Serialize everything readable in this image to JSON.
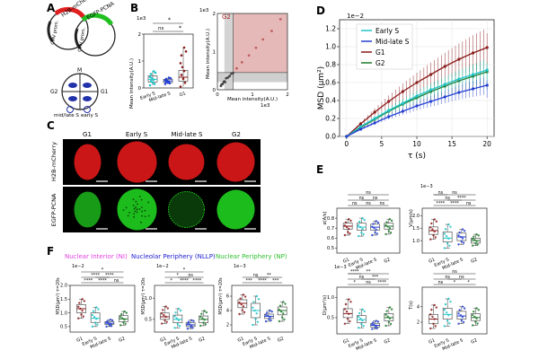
{
  "panels": {
    "A": {
      "letter": "A",
      "construct": [
        "H2B-mCherry",
        "EGFP-PCNA",
        "CMV prom.",
        "CMV prom."
      ],
      "cycle": {
        "M": "M",
        "G2": "G2",
        "G1": "G1",
        "mid_late_s": "mid/late S",
        "early_s": "early S"
      }
    },
    "B": {
      "letter": "B",
      "scale_left": "1e3",
      "scale_right": "1e3",
      "scale_right_x": "1e3",
      "sig": [
        "*",
        "ns",
        "*"
      ],
      "ylabel_left": "Mean intensity(A.U.)",
      "ylabel_right": "Mean intensity(A.U.)",
      "xlabel_right": "Mean intensity(A.U.)",
      "g2_label": "G2",
      "left_yticks": [
        "0",
        "1",
        "2"
      ],
      "left_xticks": [
        "Early S",
        "Mid-late S",
        "G1"
      ],
      "right_ticks": [
        "0",
        "1",
        "2"
      ]
    },
    "C": {
      "letter": "C",
      "columns": [
        "G1",
        "Early S",
        "Mid-late S",
        "G2"
      ],
      "rows": [
        "H2B-mCherry",
        "EGFP-PCNA"
      ]
    },
    "D": {
      "letter": "D",
      "scale": "1e−2",
      "ylabel": "MSD (μm²)",
      "xlabel": "τ (s)",
      "yticks": [
        "0.0",
        "0.2",
        "0.4",
        "0.6",
        "0.8",
        "1.0",
        "1.2"
      ],
      "xticks": [
        "0",
        "5",
        "10",
        "15",
        "20"
      ],
      "legend": [
        "Early S",
        "Mid-late S",
        "G1",
        "G2"
      ]
    },
    "E": {
      "letter": "E",
      "p1": {
        "ylabel": "α(A/s)",
        "yticks": [
          "0.5",
          "0.6",
          "0.7",
          "0.8"
        ],
        "sig": [
          "ns",
          "ns",
          "ns",
          "ns",
          "ns",
          "ns"
        ]
      },
      "p2": {
        "scale": "1e−3",
        "ylabel": "V(μm/s)",
        "yticks": [
          "1.0",
          "1.5",
          "2.0"
        ],
        "sig": [
          "****",
          "****",
          "ns",
          "ns",
          "****",
          "ns",
          "ns"
        ]
      },
      "p3": {
        "scale": "1e−3",
        "ylabel": "D(μm²/s)",
        "yticks": [
          "0.5",
          "1.0"
        ],
        "sig": [
          "*",
          "ns",
          "****",
          "ns",
          "***",
          "**",
          "****"
        ]
      },
      "p4": {
        "ylabel": "T(s)",
        "yticks": [
          "2",
          "4"
        ],
        "sig": [
          "ns",
          "*",
          "*",
          "ns",
          "ns",
          "ns"
        ]
      },
      "xticks": [
        "G1",
        "Early S",
        "Mid-late S",
        "G2"
      ]
    },
    "F": {
      "letter": "F",
      "titles": [
        "Nuclear Interior (NI)",
        "Nucleolar Periphery (NLLP)",
        "Nuclear Periphery (NP)"
      ],
      "p1": {
        "scale": "1e−2",
        "ylabel": "MSD(μm²) τ=20s",
        "yticks": [
          "0.5",
          "1.0",
          "1.5",
          "2.0"
        ],
        "sig": [
          "****",
          "****",
          "ns",
          "****",
          "****",
          "*"
        ]
      },
      "p2": {
        "scale": "1e−2",
        "ylabel": "MSD(μm²) τ=20s",
        "yticks": [
          "0.5",
          "1.0"
        ],
        "sig": [
          "*",
          "****",
          "****",
          "*",
          "ns",
          "*"
        ]
      },
      "p3": {
        "scale": "1e−3",
        "ylabel": "MSD(μm²) τ=20s",
        "yticks": [
          "2",
          "4",
          "6"
        ],
        "sig": [
          "***",
          "****",
          "***",
          "ns",
          "**"
        ]
      },
      "xticks": [
        "G1",
        "Early S",
        "Mid-late S",
        "G2"
      ]
    }
  },
  "chart_data": [
    {
      "type": "line",
      "id": "D",
      "title": "",
      "xlabel": "τ (s)",
      "ylabel": "MSD (μm²)",
      "x": [
        0,
        2,
        4,
        6,
        8,
        10,
        12,
        14,
        16,
        18,
        20
      ],
      "xlim": [
        -1,
        21
      ],
      "ylim": [
        0,
        1.3
      ],
      "series": [
        {
          "name": "Early S",
          "values": [
            0,
            0.11,
            0.2,
            0.29,
            0.37,
            0.45,
            0.52,
            0.58,
            0.64,
            0.69,
            0.74
          ],
          "err": 0.12
        },
        {
          "name": "Mid-late S",
          "values": [
            0,
            0.08,
            0.15,
            0.22,
            0.28,
            0.34,
            0.39,
            0.44,
            0.49,
            0.53,
            0.57
          ],
          "err": 0.1
        },
        {
          "name": "G1",
          "values": [
            0,
            0.14,
            0.27,
            0.39,
            0.5,
            0.6,
            0.69,
            0.78,
            0.86,
            0.93,
            0.99
          ],
          "err": 0.22
        },
        {
          "name": "G2",
          "values": [
            0,
            0.1,
            0.19,
            0.28,
            0.36,
            0.43,
            0.5,
            0.56,
            0.62,
            0.67,
            0.72
          ],
          "err": 0.15
        }
      ]
    },
    {
      "type": "scatter",
      "id": "B-right",
      "xlabel": "Mean intensity(A.U.)",
      "ylabel": "Mean intensity(A.U.)",
      "xlim": [
        0,
        2
      ],
      "ylim": [
        0,
        2
      ],
      "points": [
        [
          0.1,
          0.1
        ],
        [
          0.12,
          0.14
        ],
        [
          0.15,
          0.15
        ],
        [
          0.18,
          0.2
        ],
        [
          0.2,
          0.22
        ],
        [
          0.22,
          0.2
        ],
        [
          0.25,
          0.3
        ],
        [
          0.3,
          0.32
        ],
        [
          0.35,
          0.36
        ],
        [
          0.4,
          0.42
        ],
        [
          0.45,
          0.44
        ],
        [
          0.55,
          0.56
        ],
        [
          0.7,
          0.72
        ],
        [
          0.9,
          0.9
        ],
        [
          1.1,
          1.1
        ],
        [
          1.3,
          1.32
        ],
        [
          1.55,
          1.54
        ],
        [
          1.8,
          1.85
        ]
      ]
    },
    {
      "type": "box",
      "id": "B-left",
      "ylabel": "Mean intensity(A.U.)",
      "categories": [
        "Early S",
        "Mid-late S",
        "G1"
      ],
      "series": [
        {
          "name": "Early S",
          "q": [
            0.1,
            0.22,
            0.32,
            0.45,
            0.62
          ]
        },
        {
          "name": "Mid-late S",
          "q": [
            0.15,
            0.2,
            0.26,
            0.32,
            0.38
          ]
        },
        {
          "name": "G1",
          "q": [
            0.05,
            0.25,
            0.4,
            0.65,
            1.5
          ]
        }
      ]
    },
    {
      "type": "box",
      "id": "E-alpha",
      "categories": [
        "G1",
        "Early S",
        "Mid-late S",
        "G2"
      ],
      "ylim": [
        0.45,
        0.9
      ],
      "series": [
        {
          "q": [
            0.63,
            0.69,
            0.72,
            0.75,
            0.79
          ]
        },
        {
          "q": [
            0.62,
            0.68,
            0.71,
            0.75,
            0.8
          ]
        },
        {
          "q": [
            0.63,
            0.68,
            0.71,
            0.74,
            0.77
          ]
        },
        {
          "q": [
            0.64,
            0.69,
            0.72,
            0.75,
            0.79
          ]
        }
      ]
    },
    {
      "type": "box",
      "id": "E-V",
      "categories": [
        "G1",
        "Early S",
        "Mid-late S",
        "G2"
      ],
      "ylim": [
        0.5,
        2.3
      ],
      "series": [
        {
          "q": [
            1.05,
            1.25,
            1.4,
            1.55,
            1.85
          ]
        },
        {
          "q": [
            0.7,
            0.95,
            1.1,
            1.35,
            1.65
          ]
        },
        {
          "q": [
            0.85,
            1.0,
            1.15,
            1.3,
            1.45
          ]
        },
        {
          "q": [
            0.8,
            0.9,
            1.0,
            1.1,
            1.25
          ]
        }
      ]
    },
    {
      "type": "box",
      "id": "E-D",
      "categories": [
        "G1",
        "Early S",
        "Mid-late S",
        "G2"
      ],
      "ylim": [
        0.1,
        1.25
      ],
      "series": [
        {
          "q": [
            0.35,
            0.5,
            0.6,
            0.72,
            0.95
          ]
        },
        {
          "q": [
            0.25,
            0.38,
            0.45,
            0.55,
            0.7
          ]
        },
        {
          "q": [
            0.22,
            0.27,
            0.31,
            0.36,
            0.42
          ]
        },
        {
          "q": [
            0.3,
            0.42,
            0.5,
            0.6,
            0.75
          ]
        }
      ]
    },
    {
      "type": "box",
      "id": "E-T",
      "categories": [
        "G1",
        "Early S",
        "Mid-late S",
        "G2"
      ],
      "ylim": [
        0.5,
        6.5
      ],
      "series": [
        {
          "q": [
            1.2,
            1.8,
            2.4,
            3.0,
            4.2
          ]
        },
        {
          "q": [
            1.5,
            2.4,
            3.0,
            3.8,
            5.0
          ]
        },
        {
          "q": [
            1.8,
            2.4,
            2.8,
            3.4,
            4.0
          ]
        },
        {
          "q": [
            1.6,
            2.2,
            2.6,
            3.1,
            3.8
          ]
        }
      ]
    },
    {
      "type": "box",
      "id": "F-NI",
      "categories": [
        "G1",
        "Early S",
        "Mid-late S",
        "G2"
      ],
      "ylim": [
        0.3,
        2.0
      ],
      "series": [
        {
          "q": [
            0.8,
            1.0,
            1.15,
            1.3,
            1.5
          ]
        },
        {
          "q": [
            0.5,
            0.65,
            0.8,
            1.0,
            1.2
          ]
        },
        {
          "q": [
            0.5,
            0.58,
            0.62,
            0.68,
            0.75
          ]
        },
        {
          "q": [
            0.55,
            0.68,
            0.78,
            0.9,
            1.05
          ]
        }
      ]
    },
    {
      "type": "box",
      "id": "F-NLLP",
      "categories": [
        "G1",
        "Early S",
        "Mid-late S",
        "G2"
      ],
      "ylim": [
        0.2,
        1.3
      ],
      "series": [
        {
          "q": [
            0.4,
            0.5,
            0.56,
            0.65,
            0.8
          ]
        },
        {
          "q": [
            0.3,
            0.42,
            0.5,
            0.6,
            0.75
          ]
        },
        {
          "q": [
            0.28,
            0.33,
            0.37,
            0.42,
            0.48
          ]
        },
        {
          "q": [
            0.35,
            0.42,
            0.5,
            0.58,
            0.7
          ]
        }
      ]
    },
    {
      "type": "box",
      "id": "F-NP",
      "categories": [
        "G1",
        "Early S",
        "Mid-late S",
        "G2"
      ],
      "ylim": [
        1,
        7.5
      ],
      "series": [
        {
          "q": [
            3.5,
            4.4,
            5.0,
            5.5,
            6.2
          ]
        },
        {
          "q": [
            2.0,
            3.0,
            4.0,
            5.0,
            6.0
          ]
        },
        {
          "q": [
            2.5,
            2.9,
            3.2,
            3.5,
            4.0
          ]
        },
        {
          "q": [
            2.5,
            3.4,
            4.0,
            4.5,
            5.2
          ]
        }
      ]
    }
  ],
  "colors": {
    "g1": "#8b1a1a",
    "early_s": "#20c4c8",
    "mid_late_s": "#2540d0",
    "g2": "#1f7a2c",
    "ni": "#e040e0",
    "nllp": "#2020d0",
    "np": "#30c030",
    "g2_region": "#e0a8a8"
  }
}
